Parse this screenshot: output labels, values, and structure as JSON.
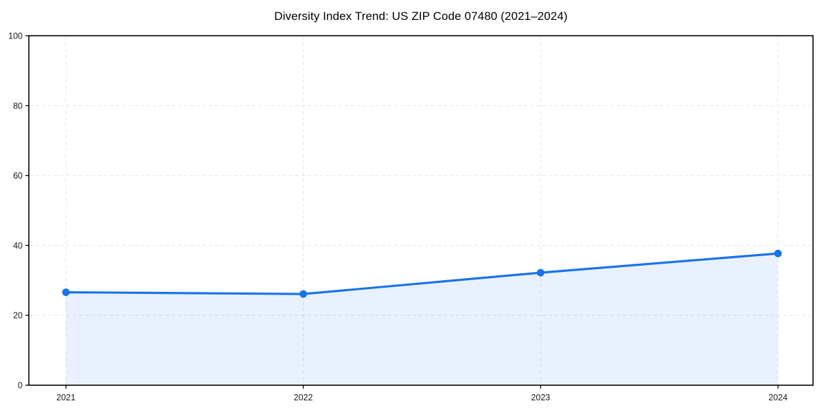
{
  "chart_data": {
    "type": "line",
    "title": "Diversity Index Trend: US ZIP Code 07480 (2021–2024)",
    "x": [
      "2021",
      "2022",
      "2023",
      "2024"
    ],
    "series": [
      {
        "name": "Diversity Index",
        "values": [
          26.6,
          26.1,
          32.2,
          37.7
        ]
      }
    ],
    "xlabel": "",
    "ylabel": "",
    "ylim": [
      0,
      100
    ],
    "yticks": [
      0,
      20,
      40,
      60,
      80,
      100
    ],
    "grid": "dashed-both-axes",
    "legend_position": "none",
    "area_fill": true,
    "colors": {
      "line": "#1a73e8",
      "marker": "#1a73e8",
      "area": "rgba(26,115,232,0.10)",
      "grid": "#e4e4e4",
      "axis": "#000000",
      "tick_label": "#1a1a1a",
      "title": "#000000",
      "background": "#ffffff"
    }
  }
}
